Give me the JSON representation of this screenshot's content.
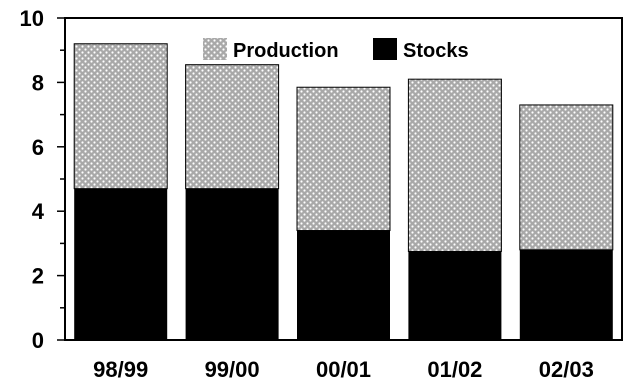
{
  "chart_data": {
    "type": "bar",
    "stacked": true,
    "categories": [
      "98/99",
      "99/00",
      "00/01",
      "01/02",
      "02/03"
    ],
    "series": [
      {
        "name": "Stocks",
        "values": [
          4.7,
          4.7,
          3.4,
          2.75,
          2.8
        ],
        "pattern": "solid",
        "color": "#000000"
      },
      {
        "name": "Production",
        "values": [
          4.5,
          3.85,
          4.45,
          5.35,
          4.5
        ],
        "pattern": "dots",
        "color": "#b0b0b0"
      }
    ],
    "ylim": [
      0,
      10
    ],
    "yticks": [
      "0",
      "2",
      "4",
      "6",
      "8",
      "10"
    ],
    "grid": false,
    "legend": {
      "placement": "top-center",
      "entries": [
        "Production",
        "Stocks"
      ]
    }
  }
}
